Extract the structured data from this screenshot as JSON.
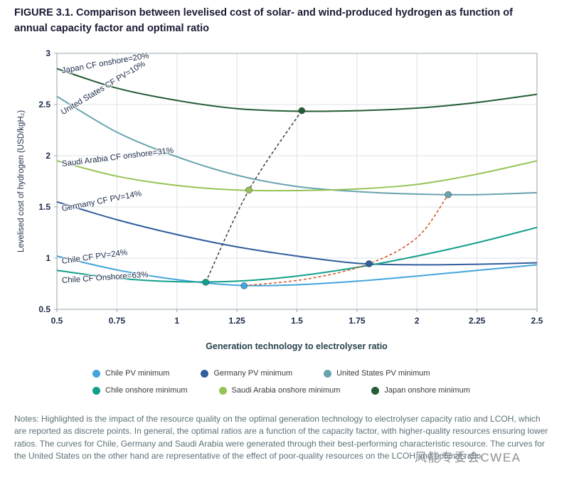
{
  "figure": {
    "title": "FIGURE 3.1. Comparison between levelised cost of solar- and wind-produced hydrogen as function of annual capacity factor and optimal ratio"
  },
  "chart_data": {
    "type": "line",
    "title": "",
    "xlabel": "Generation technology to electrolyser ratio",
    "ylabel": "Levelised cost of hydrogen (USD/kgH₂)",
    "xlim": [
      0.5,
      2.5
    ],
    "ylim": [
      0.5,
      3
    ],
    "grid": true,
    "x_ticks": [
      0.5,
      0.75,
      1,
      1.25,
      1.5,
      1.75,
      2,
      2.25,
      2.5
    ],
    "x_tick_labels": [
      "0.5",
      "0.75",
      "1",
      "1.25",
      "1.5",
      "1.75",
      "2",
      "2.25",
      "2.5"
    ],
    "y_ticks": [
      0.5,
      1,
      1.5,
      2,
      2.5,
      3
    ],
    "y_tick_labels": [
      "0.5",
      "1",
      "1.5",
      "2",
      "2.5",
      "3"
    ],
    "x": [
      0.5,
      0.75,
      1,
      1.25,
      1.5,
      1.75,
      2,
      2.25,
      2.5
    ],
    "series": [
      {
        "name": "Japan onshore",
        "curve_label": "Japan CF onshore=20%",
        "color": "#235d35",
        "values": [
          2.85,
          2.66,
          2.54,
          2.46,
          2.435,
          2.44,
          2.465,
          2.52,
          2.6
        ],
        "min_point": [
          1.52,
          2.44
        ],
        "label_anchor": [
          0.52,
          2.82
        ],
        "label_rotation": -10
      },
      {
        "name": "United States PV",
        "curve_label": "United States CF PV=10%",
        "color": "#68a3ae",
        "values": [
          2.58,
          2.23,
          1.99,
          1.81,
          1.7,
          1.65,
          1.625,
          1.62,
          1.64
        ],
        "min_point": [
          2.13,
          1.62
        ],
        "label_anchor": [
          0.52,
          2.41
        ],
        "label_rotation": -31
      },
      {
        "name": "Saudi Arabia onshore",
        "curve_label": "Saudi Arabia CF onshore=31%",
        "color": "#96c355",
        "values": [
          1.95,
          1.8,
          1.71,
          1.665,
          1.66,
          1.675,
          1.72,
          1.82,
          1.95
        ],
        "min_point": [
          1.3,
          1.665
        ],
        "label_anchor": [
          0.52,
          1.91
        ],
        "label_rotation": -7
      },
      {
        "name": "Germany PV",
        "curve_label": "Germany CF PV=14%",
        "color": "#305e9e",
        "values": [
          1.55,
          1.375,
          1.23,
          1.11,
          1.02,
          0.95,
          0.935,
          0.94,
          0.955
        ],
        "min_point": [
          1.8,
          0.945
        ],
        "label_anchor": [
          0.52,
          1.47
        ],
        "label_rotation": -11
      },
      {
        "name": "Chile PV",
        "curve_label": "Chile CF PV=24%",
        "color": "#44a5dc",
        "values": [
          1.02,
          0.885,
          0.79,
          0.735,
          0.74,
          0.775,
          0.825,
          0.88,
          0.935
        ],
        "min_point": [
          1.28,
          0.73
        ],
        "label_anchor": [
          0.52,
          0.955
        ],
        "label_rotation": -8
      },
      {
        "name": "Chile onshore",
        "curve_label": "Chile CF Onshore=63%",
        "color": "#12a089",
        "values": [
          0.88,
          0.805,
          0.77,
          0.775,
          0.825,
          0.91,
          1.02,
          1.15,
          1.3
        ],
        "min_point": [
          1.12,
          0.765
        ],
        "label_anchor": [
          0.52,
          0.77
        ],
        "label_rotation": -4
      }
    ],
    "connectors": [
      {
        "name": "onshore-minima-connector",
        "color": "#3f4a52",
        "points": [
          [
            1.12,
            0.765
          ],
          [
            1.3,
            1.665
          ],
          [
            1.52,
            2.44
          ]
        ]
      },
      {
        "name": "pv-minima-connector",
        "color": "#d75a2e",
        "points": [
          [
            1.28,
            0.73
          ],
          [
            1.55,
            0.8
          ],
          [
            1.8,
            0.945
          ],
          [
            2.0,
            1.2
          ],
          [
            2.13,
            1.62
          ]
        ]
      }
    ],
    "legend_position": "bottom"
  },
  "legend": {
    "rows": [
      [
        {
          "label": "Chile PV minimum",
          "color": "#44a5dc"
        },
        {
          "label": "Germany PV minimum",
          "color": "#305e9e"
        },
        {
          "label": "United States PV minimum",
          "color": "#68a3ae"
        }
      ],
      [
        {
          "label": "Chile onshore minimum",
          "color": "#12a089"
        },
        {
          "label": "Saudi Arabia onshore minimum",
          "color": "#96c355"
        },
        {
          "label": "Japan onshore minimum",
          "color": "#235d35"
        }
      ]
    ]
  },
  "notes": "Notes: Highlighted is the impact of the resource quality on the optimal generation technology to electrolyser capacity ratio and LCOH, which are reported as discrete points. In general, the optimal ratios are a function of the capacity factor, with higher-quality resources ensuring lower ratios. The curves for Chile, Germany and Saudi Arabia were generated through their best-performing characteristic resource. The curves for the United States on the other hand are representative of the effect of poor-quality resources on the LCOH and optimal ratio.",
  "watermark": "风能专委会CWEA"
}
